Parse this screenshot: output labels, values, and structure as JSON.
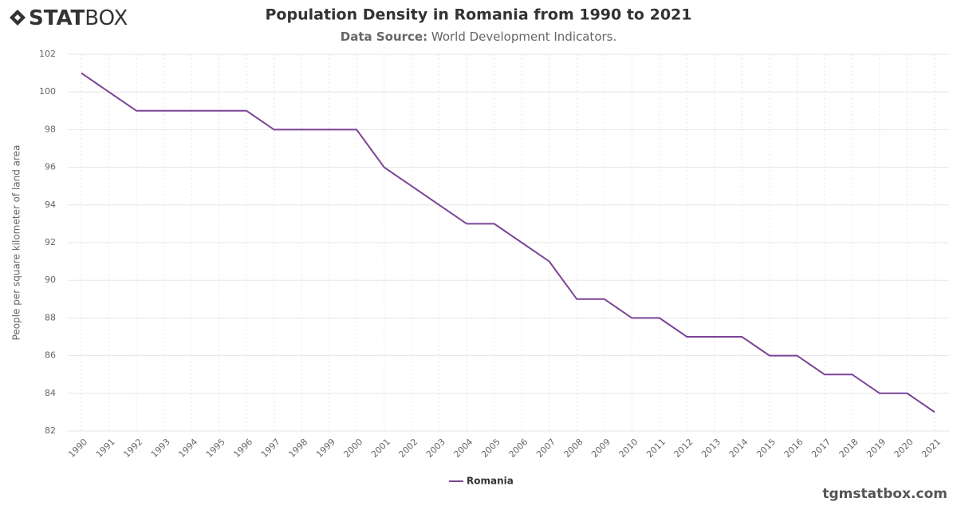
{
  "brand": {
    "bold": "STAT",
    "light": "BOX"
  },
  "footer": "tgmstatbox.com",
  "chart_data": {
    "type": "line",
    "title": "Population Density in Romania from 1990 to 2021",
    "source_label": "Data Source:",
    "source": "World Development Indicators.",
    "y_label": "People per square kilometer of land area",
    "categories": [
      "1990",
      "1991",
      "1992",
      "1993",
      "1994",
      "1995",
      "1996",
      "1997",
      "1998",
      "1999",
      "2000",
      "2001",
      "2002",
      "2003",
      "2004",
      "2005",
      "2006",
      "2007",
      "2008",
      "2009",
      "2010",
      "2011",
      "2012",
      "2013",
      "2014",
      "2015",
      "2016",
      "2017",
      "2018",
      "2019",
      "2020",
      "2021"
    ],
    "series": [
      {
        "name": "Romania",
        "color": "#7b4397",
        "values": [
          101,
          100,
          99,
          99,
          99,
          99,
          99,
          98,
          98,
          98,
          98,
          96,
          95,
          94,
          93,
          93,
          92,
          91,
          89,
          89,
          88,
          88,
          87,
          87,
          87,
          86,
          86,
          85,
          85,
          84,
          84,
          83
        ]
      }
    ],
    "ylim": [
      82,
      102
    ],
    "yticks": [
      82,
      84,
      86,
      88,
      90,
      92,
      94,
      96,
      98,
      100,
      102
    ],
    "grid": true
  }
}
